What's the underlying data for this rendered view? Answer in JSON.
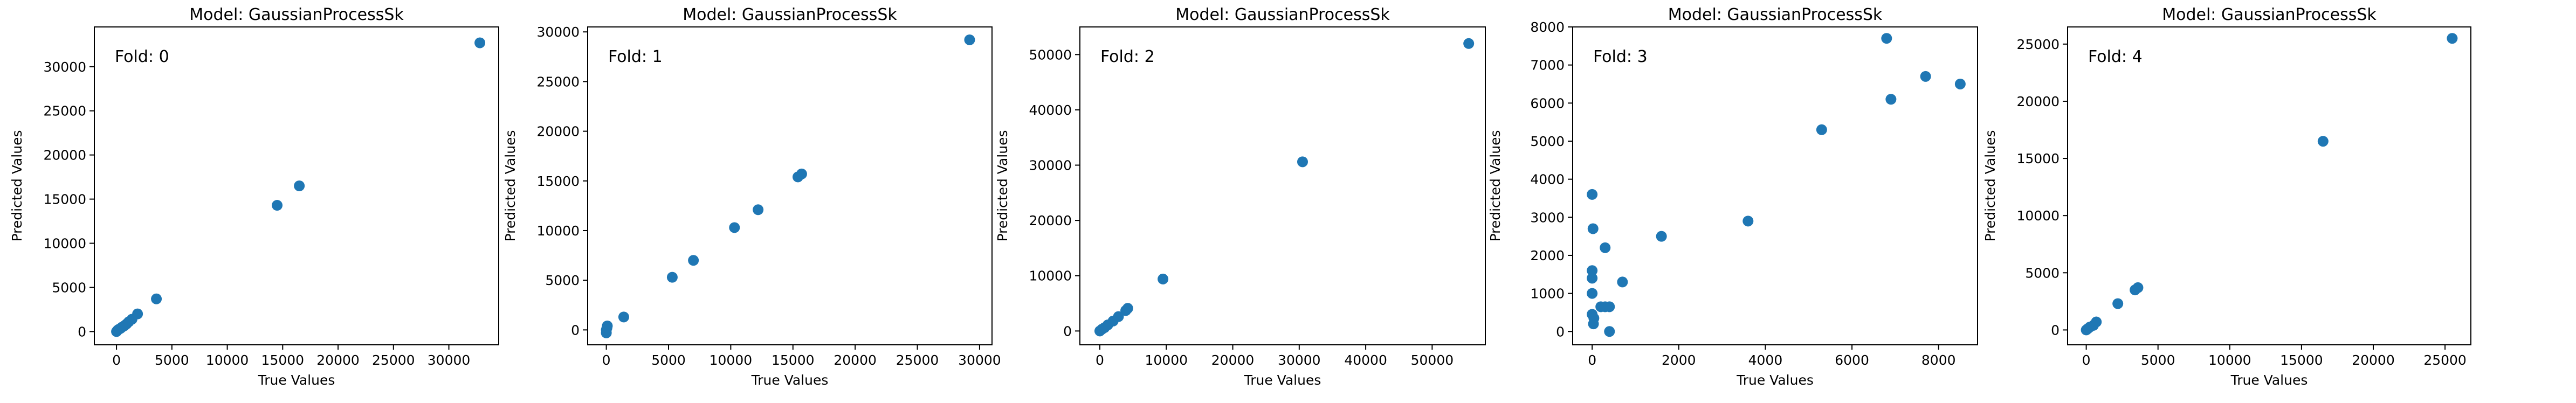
{
  "chart_data": [
    {
      "type": "scatter",
      "title": "Model: GaussianProcessSk",
      "annotation": "Fold: 0",
      "xlabel": "True Values",
      "ylabel": "Predicted Values",
      "xlim": [
        -2000,
        34500
      ],
      "ylim": [
        -1500,
        34500
      ],
      "xticks": [
        0,
        5000,
        10000,
        15000,
        20000,
        25000,
        30000
      ],
      "yticks": [
        0,
        5000,
        10000,
        15000,
        20000,
        25000,
        30000
      ],
      "marker_color": "#1f77b4",
      "points": [
        {
          "x": 0,
          "y": 0
        },
        {
          "x": 100,
          "y": 150
        },
        {
          "x": 200,
          "y": 250
        },
        {
          "x": 350,
          "y": 350
        },
        {
          "x": 500,
          "y": 500
        },
        {
          "x": 700,
          "y": 650
        },
        {
          "x": 900,
          "y": 850
        },
        {
          "x": 1100,
          "y": 1100
        },
        {
          "x": 1400,
          "y": 1400
        },
        {
          "x": 1900,
          "y": 2000
        },
        {
          "x": 3600,
          "y": 3700
        },
        {
          "x": 14500,
          "y": 14300
        },
        {
          "x": 16500,
          "y": 16500
        },
        {
          "x": 32800,
          "y": 32700
        }
      ]
    },
    {
      "type": "scatter",
      "title": "Model: GaussianProcessSk",
      "annotation": "Fold: 1",
      "xlabel": "True Values",
      "ylabel": "Predicted Values",
      "xlim": [
        -1500,
        31000
      ],
      "ylim": [
        -1500,
        30500
      ],
      "xticks": [
        0,
        5000,
        10000,
        15000,
        20000,
        25000,
        30000
      ],
      "yticks": [
        0,
        5000,
        10000,
        15000,
        20000,
        25000,
        30000
      ],
      "marker_color": "#1f77b4",
      "points": [
        {
          "x": 0,
          "y": -300
        },
        {
          "x": 0,
          "y": 0
        },
        {
          "x": 50,
          "y": 200
        },
        {
          "x": 80,
          "y": 400
        },
        {
          "x": 1400,
          "y": 1300
        },
        {
          "x": 5300,
          "y": 5300
        },
        {
          "x": 7000,
          "y": 7000
        },
        {
          "x": 10300,
          "y": 10300
        },
        {
          "x": 12200,
          "y": 12100
        },
        {
          "x": 15400,
          "y": 15400
        },
        {
          "x": 15700,
          "y": 15700
        },
        {
          "x": 29200,
          "y": 29200
        }
      ]
    },
    {
      "type": "scatter",
      "title": "Model: GaussianProcessSk",
      "annotation": "Fold: 2",
      "xlabel": "True Values",
      "ylabel": "Predicted Values",
      "xlim": [
        -3000,
        58000
      ],
      "ylim": [
        -2500,
        55000
      ],
      "xticks": [
        0,
        10000,
        20000,
        30000,
        40000,
        50000
      ],
      "yticks": [
        0,
        10000,
        20000,
        30000,
        40000,
        50000
      ],
      "marker_color": "#1f77b4",
      "points": [
        {
          "x": 0,
          "y": 0
        },
        {
          "x": 300,
          "y": 300
        },
        {
          "x": 700,
          "y": 600
        },
        {
          "x": 1200,
          "y": 1100
        },
        {
          "x": 2000,
          "y": 1800
        },
        {
          "x": 2800,
          "y": 2600
        },
        {
          "x": 3900,
          "y": 3700
        },
        {
          "x": 4200,
          "y": 4100
        },
        {
          "x": 9500,
          "y": 9400
        },
        {
          "x": 30500,
          "y": 30600
        },
        {
          "x": 55500,
          "y": 52000
        }
      ]
    },
    {
      "type": "scatter",
      "title": "Model: GaussianProcessSk",
      "annotation": "Fold: 3",
      "xlabel": "True Values",
      "ylabel": "Predicted Values",
      "xlim": [
        -450,
        8900
      ],
      "ylim": [
        -350,
        8000
      ],
      "xticks": [
        0,
        2000,
        4000,
        6000,
        8000
      ],
      "yticks": [
        0,
        1000,
        2000,
        3000,
        4000,
        5000,
        6000,
        7000,
        8000
      ],
      "marker_color": "#1f77b4",
      "points": [
        {
          "x": 0,
          "y": 3600
        },
        {
          "x": 20,
          "y": 2700
        },
        {
          "x": 0,
          "y": 1600
        },
        {
          "x": 0,
          "y": 1400
        },
        {
          "x": 0,
          "y": 1000
        },
        {
          "x": 0,
          "y": 450
        },
        {
          "x": 30,
          "y": 200
        },
        {
          "x": 40,
          "y": 350
        },
        {
          "x": 200,
          "y": 650
        },
        {
          "x": 300,
          "y": 650
        },
        {
          "x": 400,
          "y": 650
        },
        {
          "x": 300,
          "y": 2200
        },
        {
          "x": 700,
          "y": 1300
        },
        {
          "x": 400,
          "y": 0
        },
        {
          "x": 1600,
          "y": 2500
        },
        {
          "x": 3600,
          "y": 2900
        },
        {
          "x": 5300,
          "y": 5300
        },
        {
          "x": 6800,
          "y": 7700
        },
        {
          "x": 6900,
          "y": 6100
        },
        {
          "x": 7700,
          "y": 6700
        },
        {
          "x": 8500,
          "y": 6500
        }
      ]
    },
    {
      "type": "scatter",
      "title": "Model: GaussianProcessSk",
      "annotation": "Fold: 4",
      "xlabel": "True Values",
      "ylabel": "Predicted Values",
      "xlim": [
        -1300,
        26800
      ],
      "ylim": [
        -1300,
        26500
      ],
      "xticks": [
        0,
        5000,
        10000,
        15000,
        20000,
        25000
      ],
      "yticks": [
        0,
        5000,
        10000,
        15000,
        20000,
        25000
      ],
      "marker_color": "#1f77b4",
      "points": [
        {
          "x": 0,
          "y": 0
        },
        {
          "x": 100,
          "y": 100
        },
        {
          "x": 250,
          "y": 250
        },
        {
          "x": 500,
          "y": 400
        },
        {
          "x": 700,
          "y": 700
        },
        {
          "x": 2200,
          "y": 2300
        },
        {
          "x": 3400,
          "y": 3500
        },
        {
          "x": 3600,
          "y": 3700
        },
        {
          "x": 16500,
          "y": 16500
        },
        {
          "x": 25500,
          "y": 25500
        }
      ]
    }
  ]
}
